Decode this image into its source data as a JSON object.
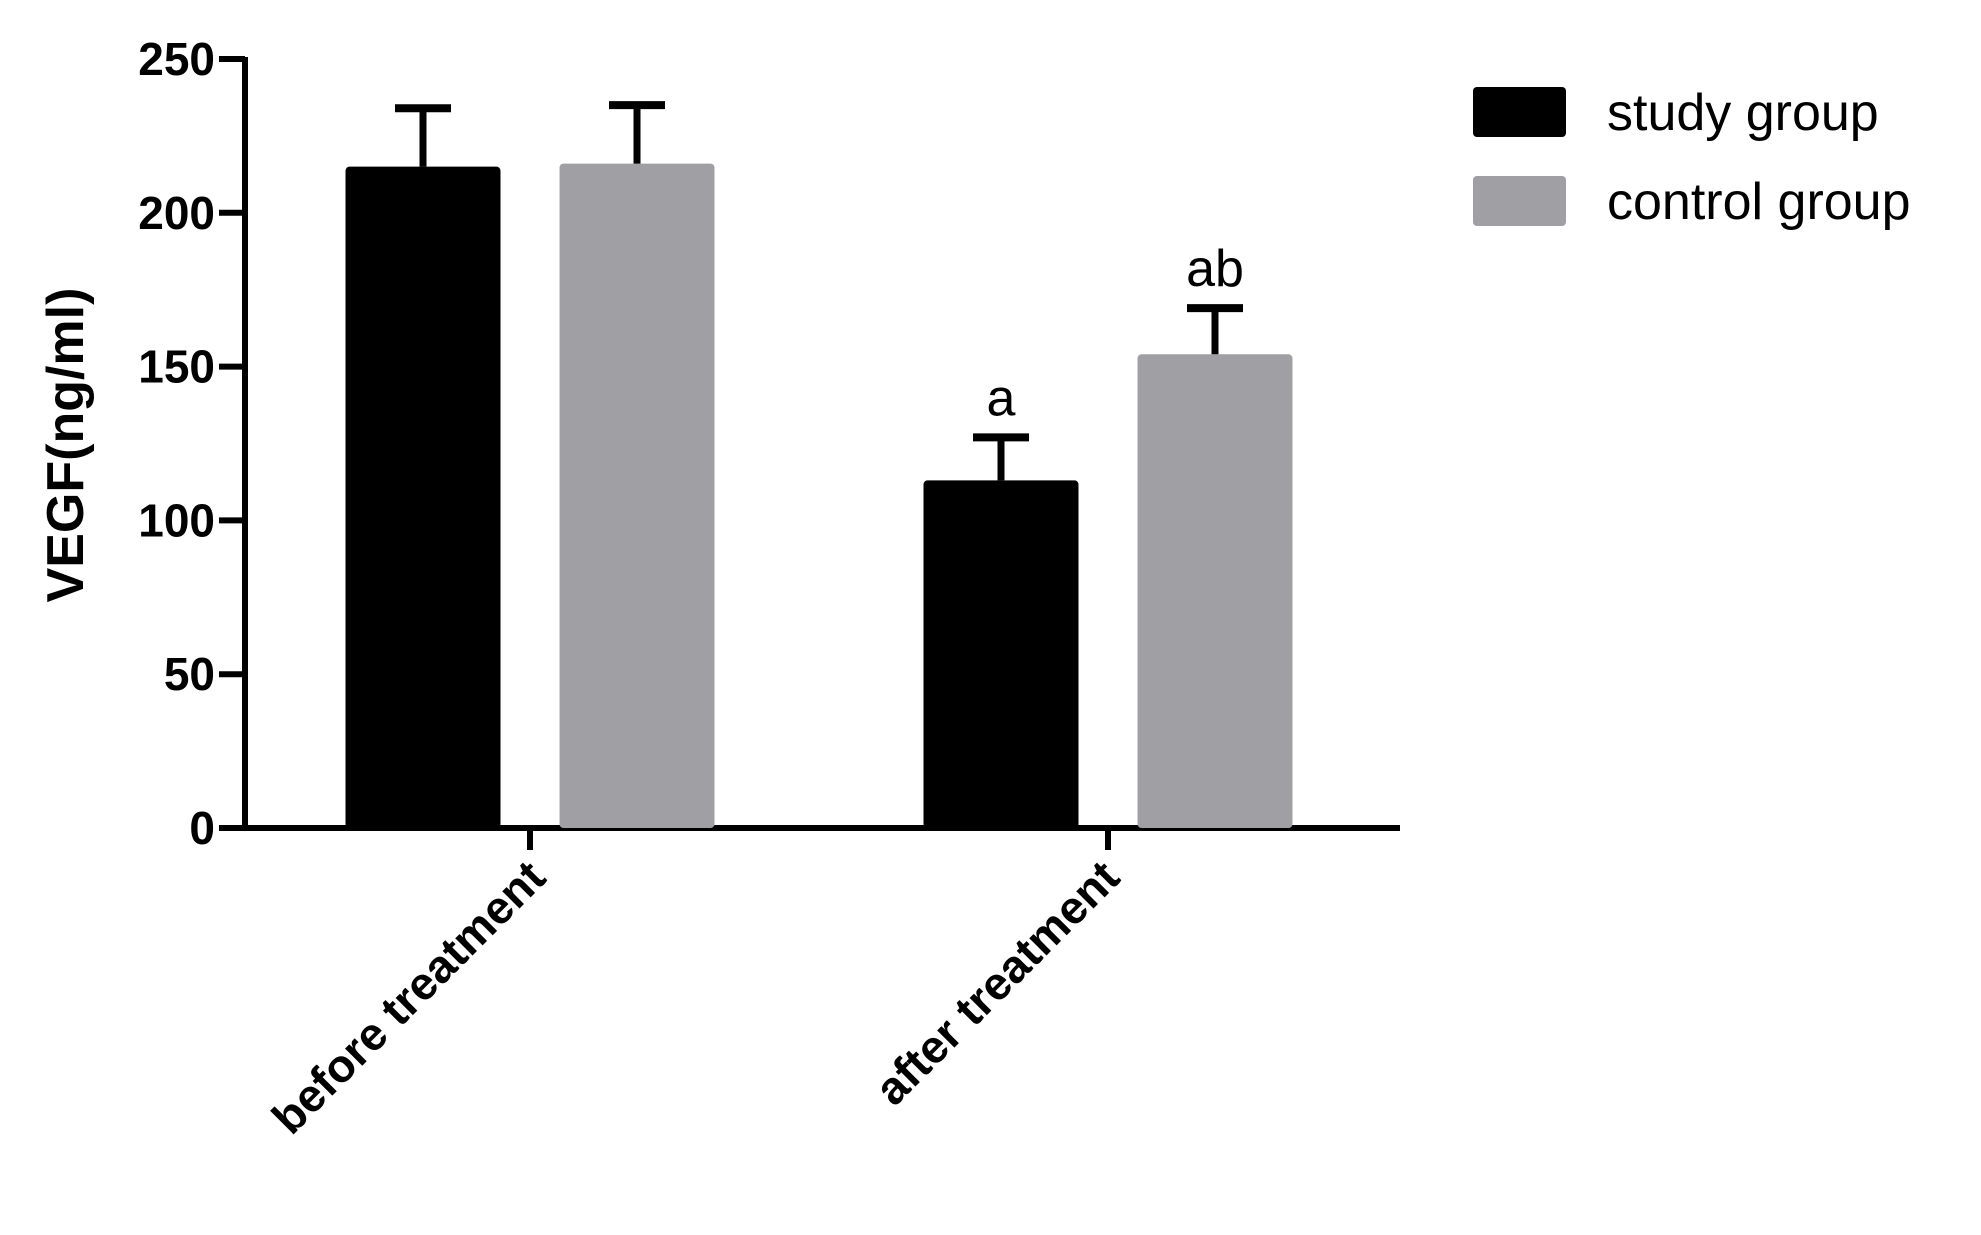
{
  "chart_data": {
    "type": "bar",
    "categories": [
      "before treatment",
      "after treatment"
    ],
    "series": [
      {
        "name": "study group",
        "color": "#000000",
        "values": [
          215,
          113
        ],
        "errors": [
          19,
          14
        ],
        "annotations": [
          "",
          "a"
        ]
      },
      {
        "name": "control group",
        "color": "#a0a0a4",
        "values": [
          216,
          154
        ],
        "errors": [
          19,
          15
        ],
        "annotations": [
          "",
          "ab"
        ]
      }
    ],
    "title": "",
    "xlabel": "",
    "ylabel": "VEGF(ng/ml)",
    "ylim": [
      0,
      250
    ],
    "yticks": [
      0,
      50,
      100,
      150,
      200,
      250
    ],
    "grid": false,
    "legend_position": "top-right"
  }
}
